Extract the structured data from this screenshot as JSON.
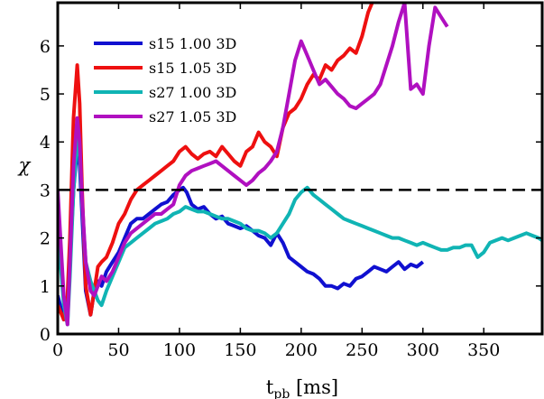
{
  "chart_data": {
    "type": "line",
    "title": "",
    "xlabel_main": "t",
    "xlabel_sub": "pb",
    "xlabel_unit": " [ms]",
    "ylabel": "χ",
    "xlim": [
      0,
      398
    ],
    "ylim": [
      0,
      6.9
    ],
    "xticks": [
      0,
      50,
      100,
      150,
      200,
      250,
      300,
      350
    ],
    "yticks": [
      0,
      1,
      2,
      3,
      4,
      5,
      6
    ],
    "reference_line": {
      "y": 3,
      "style": "dashed",
      "color": "#000000"
    },
    "legend_position": "upper-left",
    "series": [
      {
        "name": "s15 1.00 3D",
        "color": "#1010d0",
        "x": [
          0,
          5,
          8,
          10,
          13,
          16,
          18,
          20,
          23,
          27,
          30,
          33,
          36,
          40,
          45,
          50,
          55,
          60,
          65,
          70,
          75,
          80,
          85,
          90,
          95,
          100,
          103,
          106,
          110,
          115,
          120,
          125,
          130,
          135,
          140,
          145,
          150,
          155,
          160,
          165,
          170,
          175,
          180,
          185,
          190,
          195,
          200,
          205,
          210,
          215,
          220,
          225,
          230,
          235,
          240,
          245,
          250,
          255,
          260,
          265,
          270,
          275,
          280,
          285,
          290,
          295,
          300
        ],
        "y": [
          0.8,
          0.3,
          0.5,
          1.5,
          3.0,
          3.9,
          3.5,
          2.5,
          0.9,
          0.4,
          0.9,
          1.1,
          1.0,
          1.3,
          1.5,
          1.7,
          2.0,
          2.3,
          2.4,
          2.4,
          2.5,
          2.6,
          2.7,
          2.75,
          2.9,
          3.0,
          3.05,
          2.95,
          2.7,
          2.6,
          2.65,
          2.5,
          2.4,
          2.45,
          2.3,
          2.25,
          2.2,
          2.25,
          2.15,
          2.05,
          2.0,
          1.85,
          2.1,
          1.9,
          1.6,
          1.5,
          1.4,
          1.3,
          1.25,
          1.15,
          1.0,
          1.0,
          0.95,
          1.05,
          1.0,
          1.15,
          1.2,
          1.3,
          1.4,
          1.35,
          1.3,
          1.4,
          1.5,
          1.35,
          1.45,
          1.4,
          1.5
        ]
      },
      {
        "name": "s15 1.05 3D",
        "color": "#ee1010",
        "x": [
          0,
          5,
          8,
          10,
          13,
          16,
          18,
          20,
          23,
          27,
          30,
          33,
          36,
          40,
          45,
          50,
          55,
          60,
          65,
          70,
          75,
          80,
          85,
          90,
          95,
          100,
          105,
          110,
          115,
          120,
          125,
          130,
          135,
          140,
          145,
          150,
          155,
          160,
          165,
          170,
          175,
          180,
          185,
          190,
          195,
          200,
          205,
          210,
          215,
          220,
          225,
          230,
          235,
          240,
          245,
          250,
          255,
          260
        ],
        "y": [
          0.6,
          0.3,
          0.8,
          2.0,
          4.5,
          5.6,
          4.8,
          3.0,
          1.0,
          0.4,
          0.9,
          1.4,
          1.5,
          1.6,
          1.9,
          2.3,
          2.5,
          2.8,
          3.0,
          3.1,
          3.2,
          3.3,
          3.4,
          3.5,
          3.6,
          3.8,
          3.9,
          3.75,
          3.65,
          3.75,
          3.8,
          3.7,
          3.9,
          3.75,
          3.6,
          3.5,
          3.8,
          3.9,
          4.2,
          4.0,
          3.9,
          3.7,
          4.3,
          4.6,
          4.7,
          4.9,
          5.2,
          5.4,
          5.3,
          5.6,
          5.5,
          5.7,
          5.8,
          5.95,
          5.85,
          6.2,
          6.7,
          7.0
        ]
      },
      {
        "name": "s27 1.00 3D",
        "color": "#10b4b4",
        "x": [
          0,
          5,
          8,
          10,
          13,
          16,
          18,
          20,
          23,
          27,
          30,
          33,
          36,
          40,
          45,
          50,
          55,
          60,
          65,
          70,
          75,
          80,
          85,
          90,
          95,
          100,
          105,
          110,
          115,
          120,
          125,
          130,
          135,
          140,
          145,
          150,
          155,
          160,
          165,
          170,
          175,
          180,
          185,
          190,
          195,
          200,
          205,
          210,
          215,
          220,
          225,
          230,
          235,
          240,
          245,
          250,
          255,
          260,
          265,
          270,
          275,
          280,
          285,
          290,
          295,
          300,
          305,
          310,
          315,
          320,
          325,
          330,
          335,
          340,
          345,
          350,
          355,
          360,
          365,
          370,
          375,
          380,
          385,
          390,
          395,
          398
        ],
        "y": [
          2.2,
          0.6,
          0.2,
          1.2,
          3.0,
          4.1,
          3.7,
          2.7,
          1.5,
          1.1,
          0.9,
          0.7,
          0.6,
          0.9,
          1.2,
          1.5,
          1.8,
          1.9,
          2.0,
          2.1,
          2.2,
          2.3,
          2.35,
          2.4,
          2.5,
          2.55,
          2.65,
          2.6,
          2.55,
          2.55,
          2.5,
          2.45,
          2.4,
          2.4,
          2.35,
          2.3,
          2.2,
          2.15,
          2.15,
          2.1,
          2.0,
          2.1,
          2.3,
          2.5,
          2.8,
          2.95,
          3.05,
          2.9,
          2.8,
          2.7,
          2.6,
          2.5,
          2.4,
          2.35,
          2.3,
          2.25,
          2.2,
          2.15,
          2.1,
          2.05,
          2.0,
          2.0,
          1.95,
          1.9,
          1.85,
          1.9,
          1.85,
          1.8,
          1.75,
          1.75,
          1.8,
          1.8,
          1.85,
          1.85,
          1.6,
          1.7,
          1.9,
          1.95,
          2.0,
          1.95,
          2.0,
          2.05,
          2.1,
          2.05,
          2.0,
          1.95
        ]
      },
      {
        "name": "s27 1.05 3D",
        "color": "#b010c0",
        "x": [
          0,
          5,
          8,
          10,
          13,
          16,
          18,
          20,
          23,
          27,
          30,
          33,
          36,
          40,
          45,
          50,
          55,
          60,
          65,
          70,
          75,
          80,
          85,
          90,
          95,
          100,
          105,
          110,
          115,
          120,
          125,
          130,
          135,
          140,
          145,
          150,
          155,
          160,
          165,
          170,
          175,
          180,
          185,
          190,
          195,
          200,
          205,
          210,
          215,
          220,
          225,
          230,
          235,
          240,
          245,
          250,
          255,
          260,
          265,
          270,
          275,
          280,
          285,
          290,
          295,
          300,
          305,
          310,
          315,
          320
        ],
        "y": [
          3.0,
          0.8,
          0.2,
          1.5,
          3.5,
          4.5,
          4.0,
          2.8,
          1.5,
          0.9,
          0.8,
          1.0,
          1.2,
          1.1,
          1.3,
          1.6,
          1.9,
          2.1,
          2.2,
          2.3,
          2.4,
          2.5,
          2.5,
          2.6,
          2.7,
          3.1,
          3.3,
          3.4,
          3.45,
          3.5,
          3.55,
          3.6,
          3.5,
          3.4,
          3.3,
          3.2,
          3.1,
          3.2,
          3.35,
          3.45,
          3.6,
          3.8,
          4.3,
          5.0,
          5.7,
          6.1,
          5.8,
          5.5,
          5.2,
          5.3,
          5.15,
          5.0,
          4.9,
          4.75,
          4.7,
          4.8,
          4.9,
          5.0,
          5.2,
          5.6,
          6.0,
          6.5,
          6.9,
          5.1,
          5.2,
          5.0,
          6.0,
          6.8,
          6.6,
          6.4
        ]
      }
    ]
  }
}
